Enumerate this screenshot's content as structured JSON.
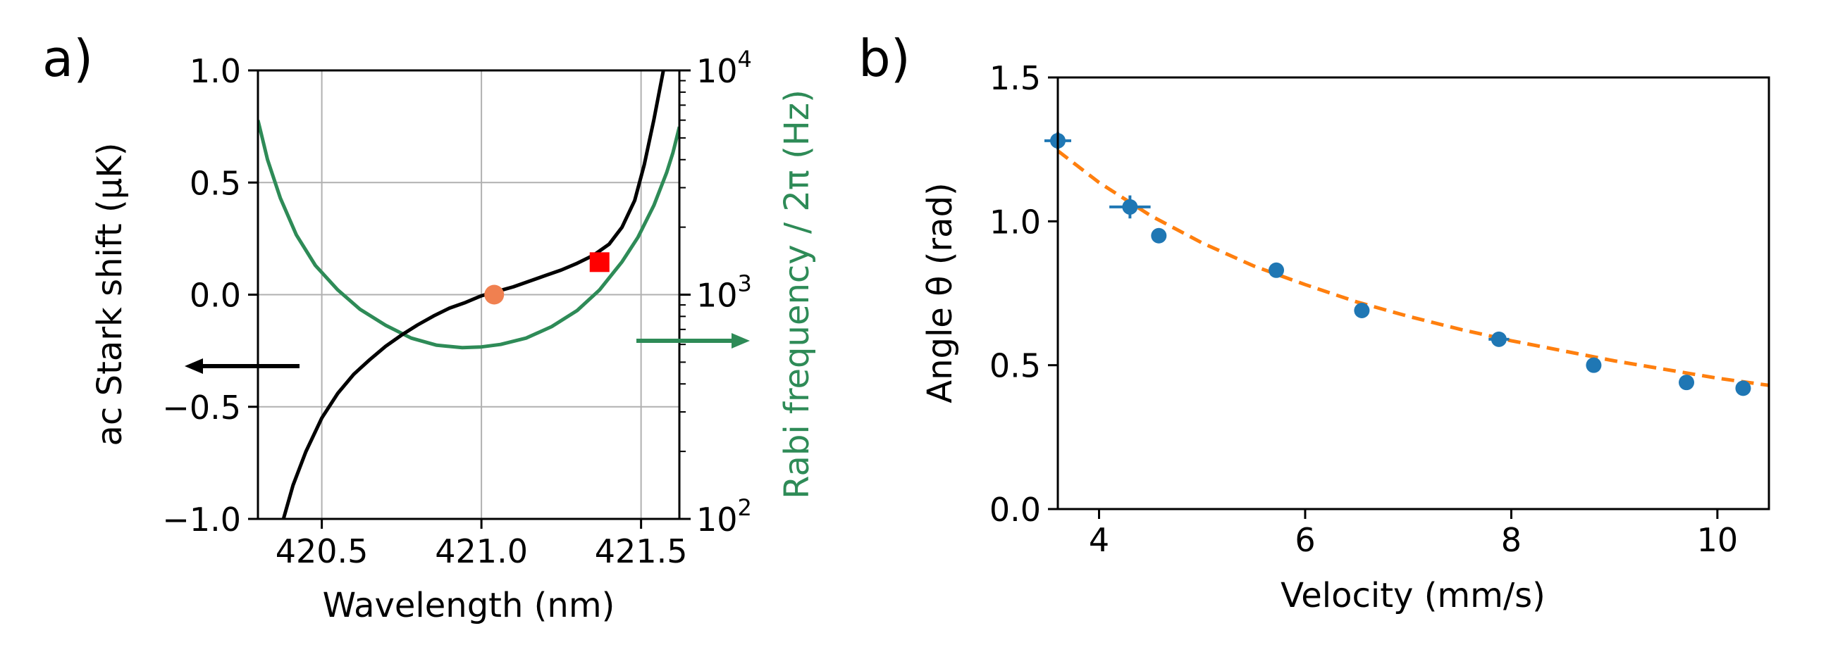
{
  "chart_data": [
    {
      "type": "line",
      "panel_label": "a)",
      "xlabel": "Wavelength (nm)",
      "ylabel_left": "ac Stark shift (μK)",
      "ylabel_right": "Rabi frequency / 2π (Hz)",
      "xlim": [
        420.3,
        421.62
      ],
      "ylim_left": [
        -1.0,
        1.0
      ],
      "ylim_right_log": [
        100,
        10000
      ],
      "x_ticks": [
        "420.5",
        "421.0",
        "421.5"
      ],
      "x_tick_values": [
        420.5,
        421.0,
        421.5
      ],
      "y_ticks_left": [
        "−1.0",
        "−0.5",
        "0.0",
        "0.5",
        "1.0"
      ],
      "y_tick_values_left": [
        -1.0,
        -0.5,
        0.0,
        0.5,
        1.0
      ],
      "y_ticks_right_exponents": [
        "2",
        "3",
        "4"
      ],
      "y_tick_values_right": [
        100,
        1000,
        10000
      ],
      "grid": true,
      "colors": {
        "stark": "#000000",
        "rabi": "#2e8b57",
        "marker_circle": "#f08050",
        "marker_square": "#ff0000"
      },
      "series": [
        {
          "name": "ac Stark shift",
          "axis": "left",
          "x": [
            420.38,
            420.41,
            420.45,
            420.5,
            420.55,
            420.6,
            420.65,
            420.7,
            420.75,
            420.8,
            420.85,
            420.9,
            420.95,
            421.0,
            421.05,
            421.1,
            421.15,
            421.2,
            421.25,
            421.3,
            421.35,
            421.4,
            421.44,
            421.48,
            421.51,
            421.54,
            421.57
          ],
          "values": [
            -1.0,
            -0.85,
            -0.7,
            -0.55,
            -0.44,
            -0.355,
            -0.29,
            -0.23,
            -0.18,
            -0.135,
            -0.095,
            -0.06,
            -0.035,
            -0.005,
            0.015,
            0.035,
            0.06,
            0.085,
            0.11,
            0.14,
            0.175,
            0.225,
            0.3,
            0.42,
            0.58,
            0.78,
            1.0
          ]
        },
        {
          "name": "Rabi frequency",
          "axis": "right",
          "x": [
            420.3,
            420.33,
            420.37,
            420.42,
            420.48,
            420.55,
            420.62,
            420.7,
            420.78,
            420.86,
            420.94,
            421.0,
            421.06,
            421.14,
            421.22,
            421.3,
            421.37,
            421.44,
            421.49,
            421.54,
            421.58,
            421.6,
            421.62
          ],
          "values": [
            6000,
            4000,
            2700,
            1850,
            1350,
            1050,
            860,
            730,
            640,
            595,
            580,
            585,
            600,
            640,
            720,
            850,
            1050,
            1400,
            1800,
            2500,
            3500,
            4300,
            5600
          ]
        }
      ],
      "points": [
        {
          "name": "operating-point-circle",
          "x": 421.04,
          "value": 0.0,
          "marker": "circle"
        },
        {
          "name": "operating-point-square",
          "x": 421.37,
          "value": 0.145,
          "marker": "square"
        }
      ]
    },
    {
      "type": "scatter",
      "panel_label": "b)",
      "xlabel": "Velocity (mm/s)",
      "ylabel": "Angle θ (rad)",
      "xlim": [
        3.6,
        10.5
      ],
      "ylim": [
        0.0,
        1.5
      ],
      "x_ticks": [
        "4",
        "6",
        "8",
        "10"
      ],
      "x_tick_values": [
        4,
        6,
        8,
        10
      ],
      "y_ticks": [
        "0.0",
        "0.5",
        "1.0",
        "1.5"
      ],
      "y_tick_values": [
        0.0,
        0.5,
        1.0,
        1.5
      ],
      "grid": false,
      "colors": {
        "points": "#1f77b4",
        "fit": "#ff7f0e"
      },
      "series": [
        {
          "name": "measured",
          "x": [
            3.6,
            4.3,
            4.58,
            5.72,
            6.55,
            7.88,
            8.8,
            9.7,
            10.25
          ],
          "values": [
            1.28,
            1.05,
            0.95,
            0.83,
            0.69,
            0.59,
            0.5,
            0.44,
            0.42
          ],
          "x_err": [
            0.13,
            0.2,
            0.06,
            0.03,
            0.04,
            0.1,
            0.05,
            0.03,
            0.03
          ],
          "y_err": [
            0.03,
            0.04,
            0.02,
            0.02,
            0.015,
            0.015,
            0.02,
            0.015,
            0.015
          ]
        },
        {
          "name": "fit",
          "style": "dashed",
          "x": [
            3.6,
            4.0,
            4.5,
            5.0,
            5.5,
            6.0,
            6.5,
            7.0,
            7.5,
            8.0,
            8.5,
            9.0,
            9.5,
            10.0,
            10.5
          ],
          "values": [
            1.245,
            1.135,
            1.02,
            0.925,
            0.845,
            0.78,
            0.72,
            0.67,
            0.625,
            0.585,
            0.55,
            0.515,
            0.485,
            0.455,
            0.43
          ]
        }
      ]
    }
  ]
}
